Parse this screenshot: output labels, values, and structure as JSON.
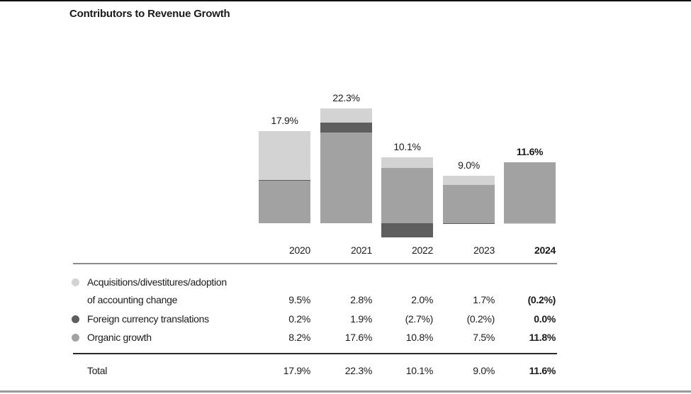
{
  "title": "Contributors to Revenue Growth",
  "colors": {
    "acquisitions": "#d3d3d3",
    "currency": "#5e5e5e",
    "organic": "#a2a2a2",
    "text": "#1a1a1a",
    "rule_top": "#8a8a8a",
    "rule_mid": "#2b2b2b",
    "page_top_border": "#111111",
    "page_bottom_border": "#9a9a9a"
  },
  "chart_data": {
    "type": "bar",
    "stacked": true,
    "title": "Contributors to Revenue Growth",
    "categories": [
      "2020",
      "2021",
      "2022",
      "2023",
      "2024"
    ],
    "series": [
      {
        "name": "Acquisitions/divestitures/adoption of accounting change",
        "color_key": "acquisitions",
        "values": [
          9.5,
          2.8,
          2.0,
          1.7,
          -0.2
        ]
      },
      {
        "name": "Foreign currency translations",
        "color_key": "currency",
        "values": [
          0.2,
          1.9,
          -2.7,
          -0.2,
          0.0
        ]
      },
      {
        "name": "Organic growth",
        "color_key": "organic",
        "values": [
          8.2,
          17.6,
          10.8,
          7.5,
          11.8
        ]
      }
    ],
    "totals": [
      17.9,
      22.3,
      10.1,
      9.0,
      11.6
    ],
    "total_labels": [
      "17.9%",
      "22.3%",
      "10.1%",
      "9.0%",
      "11.6%"
    ],
    "xlabel": "",
    "ylabel": "",
    "ylim": [
      -3,
      23
    ],
    "grid": false,
    "legend_position": "table-below-chart",
    "emphasized_category_index": 4
  },
  "table": {
    "rows": [
      {
        "bullet": "acquisitions",
        "label_lines": [
          "Acquisitions/divestitures/adoption",
          "of accounting change"
        ],
        "values": [
          "9.5%",
          "2.8%",
          "2.0%",
          "1.7%",
          "(0.2%)"
        ]
      },
      {
        "bullet": "currency",
        "label_lines": [
          "Foreign currency translations"
        ],
        "values": [
          "0.2%",
          "1.9%",
          "(2.7%)",
          "(0.2%)",
          "0.0%"
        ]
      },
      {
        "bullet": "organic",
        "label_lines": [
          "Organic growth"
        ],
        "values": [
          "8.2%",
          "17.6%",
          "10.8%",
          "7.5%",
          "11.8%"
        ]
      }
    ],
    "total": {
      "label": "Total",
      "values": [
        "17.9%",
        "22.3%",
        "10.1%",
        "9.0%",
        "11.6%"
      ]
    }
  }
}
